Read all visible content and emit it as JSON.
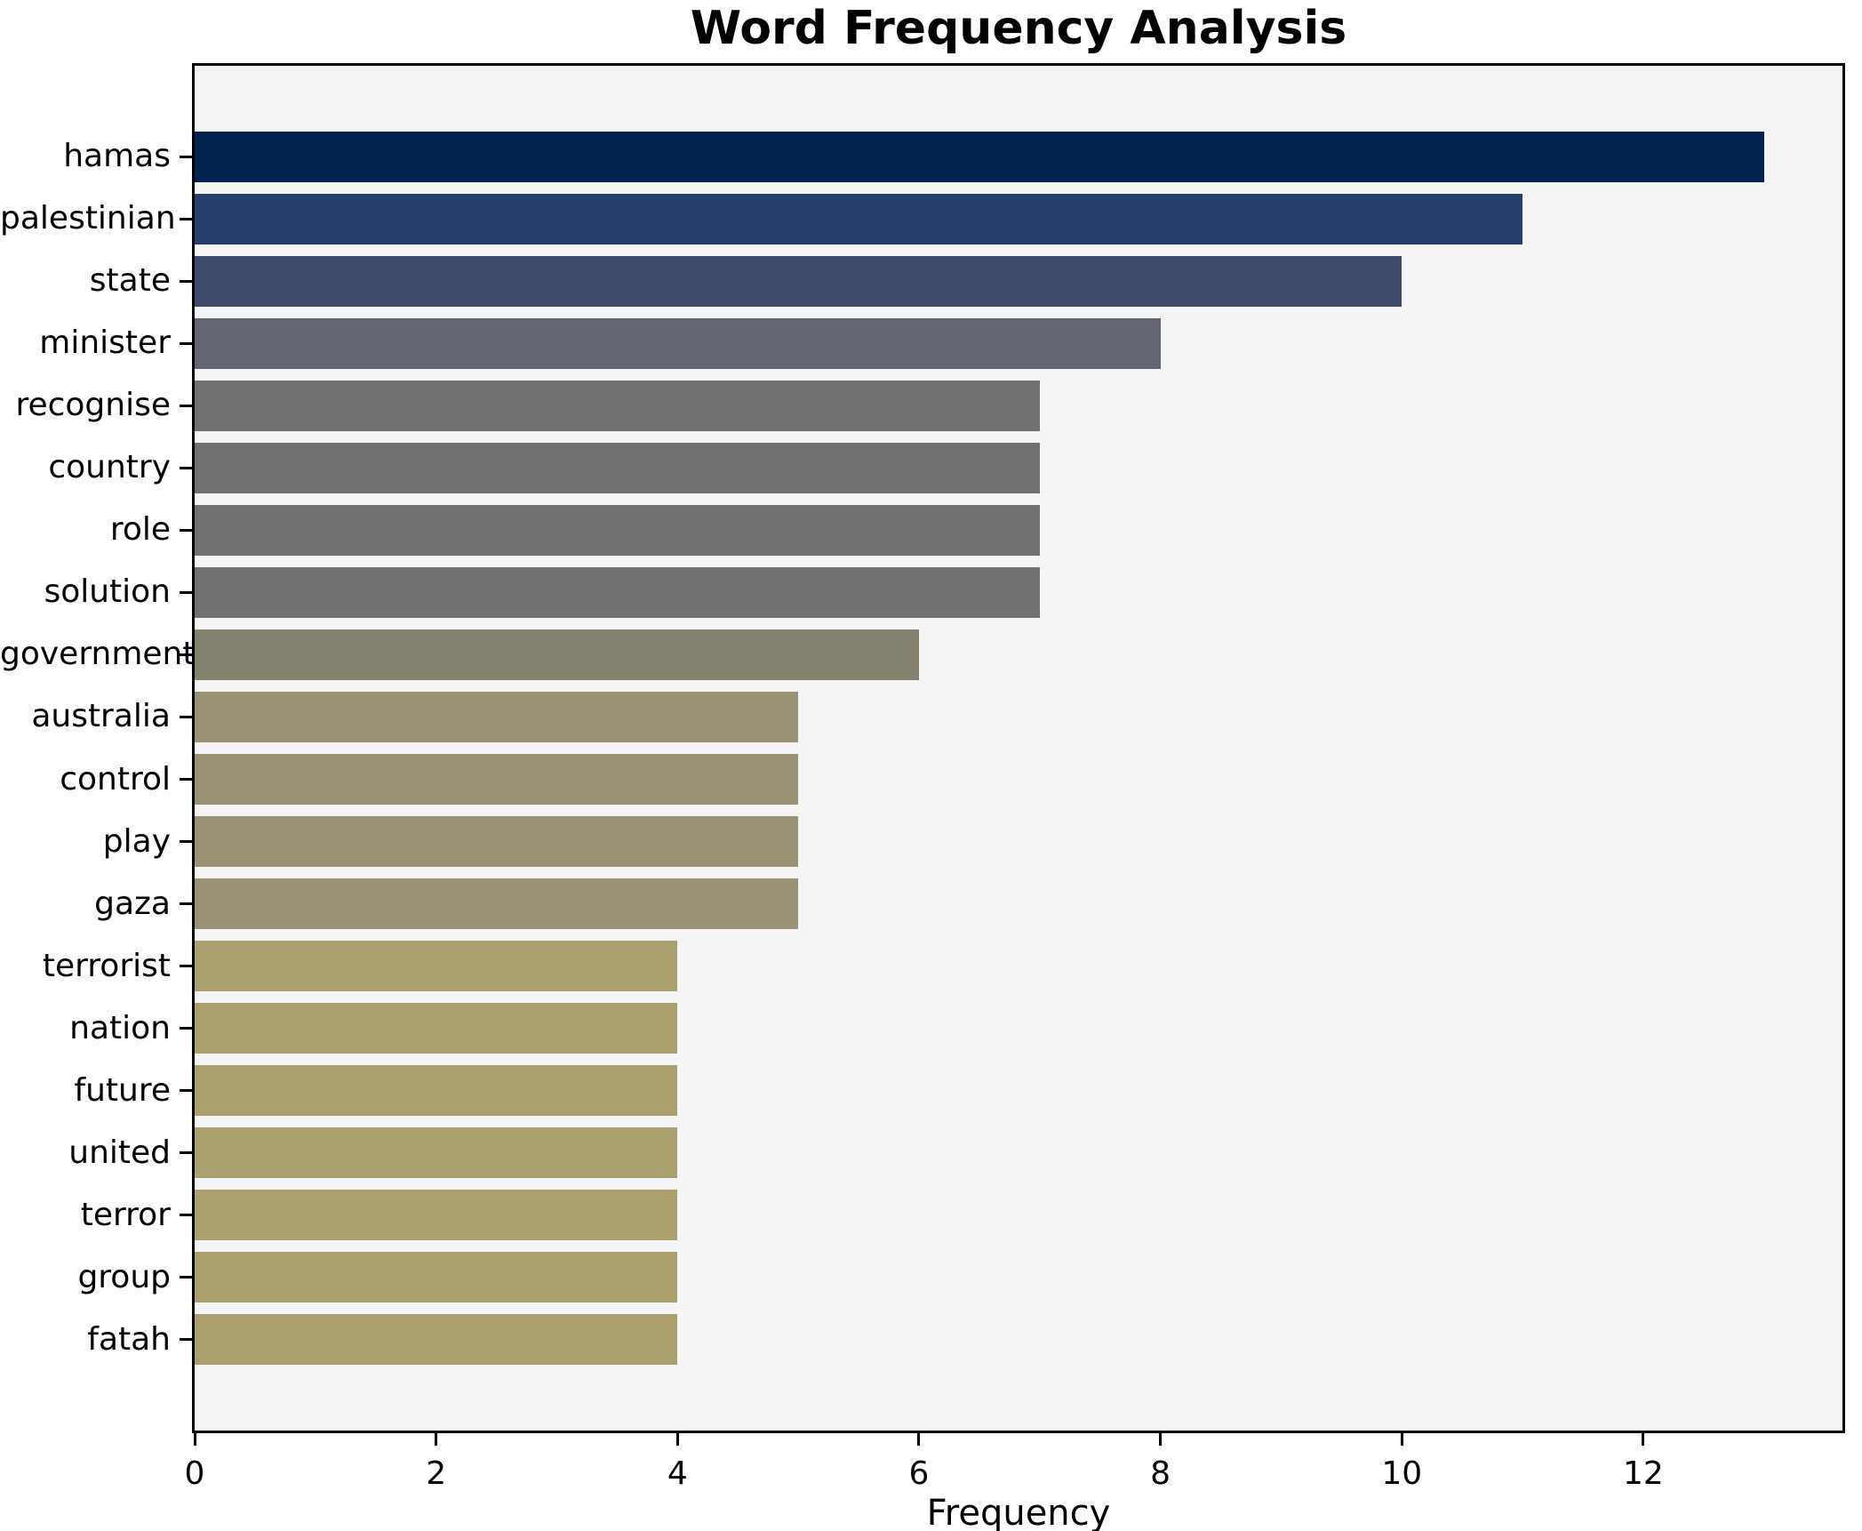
{
  "title": "Word Frequency Analysis",
  "chart_data": {
    "type": "bar",
    "orientation": "horizontal",
    "title": "Word Frequency Analysis",
    "xlabel": "Frequency",
    "ylabel": "",
    "categories": [
      "hamas",
      "palestinian",
      "state",
      "minister",
      "recognise",
      "country",
      "role",
      "solution",
      "government",
      "australia",
      "control",
      "play",
      "gaza",
      "terrorist",
      "nation",
      "future",
      "united",
      "terror",
      "group",
      "fatah"
    ],
    "values": [
      13,
      11,
      10,
      8,
      7,
      7,
      7,
      7,
      6,
      5,
      5,
      5,
      5,
      4,
      4,
      4,
      4,
      4,
      4,
      4
    ],
    "bar_colors": [
      "#02234d",
      "#273e6b",
      "#3f4a6b",
      "#636570",
      "#717171",
      "#717171",
      "#717171",
      "#717171",
      "#84816f",
      "#999275",
      "#999275",
      "#999275",
      "#999275",
      "#aba06f",
      "#aba06f",
      "#aba06f",
      "#aba06f",
      "#aba06f",
      "#aba06f",
      "#aba06f"
    ],
    "xlim": [
      0,
      13.65
    ],
    "xticks": [
      0,
      2,
      4,
      6,
      8,
      10,
      12
    ],
    "grid": false,
    "legend": "none",
    "plot_bg": "#f5f5f5",
    "figure_bg": "#ffffff",
    "spine_color": "#000000"
  }
}
